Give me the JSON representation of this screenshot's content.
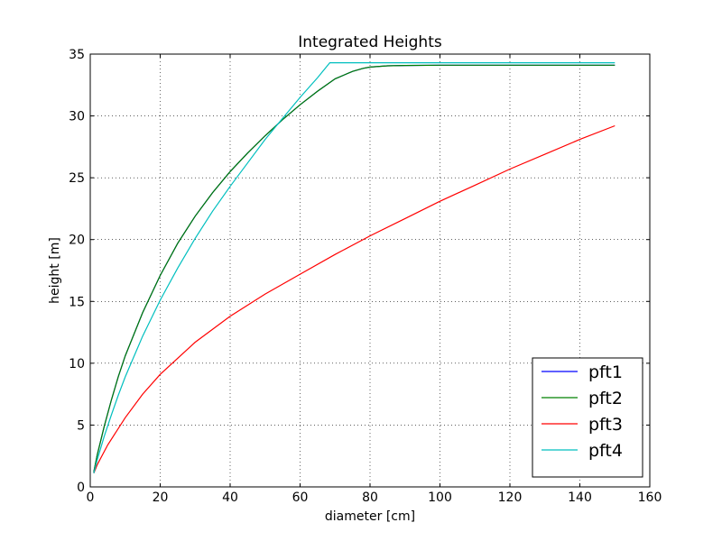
{
  "chart_data": {
    "type": "line",
    "title": "Integrated Heights",
    "xlabel": "diameter [cm]",
    "ylabel": "height [m]",
    "xlim": [
      0,
      160
    ],
    "ylim": [
      0,
      35
    ],
    "xticks": [
      0,
      20,
      40,
      60,
      80,
      100,
      120,
      140,
      160
    ],
    "yticks": [
      0,
      5,
      10,
      15,
      20,
      25,
      30,
      35
    ],
    "grid": true,
    "legend_position": "lower-right",
    "series": [
      {
        "name": "pft1",
        "color": "#0000ff",
        "x": [
          1,
          2,
          4,
          6,
          8,
          10,
          15,
          20,
          25,
          30,
          35,
          40,
          45,
          50,
          55,
          60,
          65,
          70,
          75,
          78,
          80,
          85,
          90,
          100,
          110,
          120,
          130,
          140,
          150
        ],
        "y": [
          1.2,
          2.6,
          4.9,
          7.0,
          8.9,
          10.6,
          14.1,
          17.1,
          19.7,
          21.9,
          23.8,
          25.5,
          27.0,
          28.4,
          29.7,
          30.9,
          32.0,
          33.0,
          33.6,
          33.85,
          33.95,
          34.05,
          34.08,
          34.1,
          34.1,
          34.1,
          34.1,
          34.1,
          34.1
        ]
      },
      {
        "name": "pft2",
        "color": "#008000",
        "x": [
          1,
          2,
          4,
          6,
          8,
          10,
          15,
          20,
          25,
          30,
          35,
          40,
          45,
          50,
          55,
          60,
          65,
          70,
          75,
          78,
          80,
          85,
          90,
          100,
          110,
          120,
          130,
          140,
          150
        ],
        "y": [
          1.2,
          2.6,
          4.9,
          7.0,
          8.9,
          10.6,
          14.1,
          17.1,
          19.7,
          21.9,
          23.8,
          25.5,
          27.0,
          28.4,
          29.7,
          30.9,
          32.0,
          33.0,
          33.6,
          33.85,
          33.95,
          34.05,
          34.08,
          34.1,
          34.1,
          34.1,
          34.1,
          34.1,
          34.1
        ]
      },
      {
        "name": "pft3",
        "color": "#ff0000",
        "x": [
          1,
          2,
          5,
          10,
          15,
          20,
          30,
          40,
          50,
          60,
          70,
          80,
          90,
          100,
          110,
          120,
          130,
          140,
          150
        ],
        "y": [
          1.1,
          1.8,
          3.4,
          5.6,
          7.5,
          9.1,
          11.7,
          13.8,
          15.6,
          17.2,
          18.8,
          20.3,
          21.7,
          23.1,
          24.4,
          25.7,
          26.9,
          28.1,
          29.2
        ]
      },
      {
        "name": "pft4",
        "color": "#00bfbf",
        "x": [
          1,
          2,
          4,
          6,
          8,
          10,
          15,
          20,
          25,
          30,
          35,
          40,
          45,
          50,
          55,
          60,
          65,
          68.5,
          70,
          80,
          100,
          120,
          140,
          150
        ],
        "y": [
          1.1,
          2.2,
          4.1,
          5.8,
          7.4,
          8.9,
          12.2,
          15.1,
          17.7,
          20.1,
          22.3,
          24.3,
          26.2,
          28.1,
          29.8,
          31.5,
          33.1,
          34.3,
          34.3,
          34.3,
          34.3,
          34.3,
          34.3,
          34.3
        ]
      }
    ]
  }
}
